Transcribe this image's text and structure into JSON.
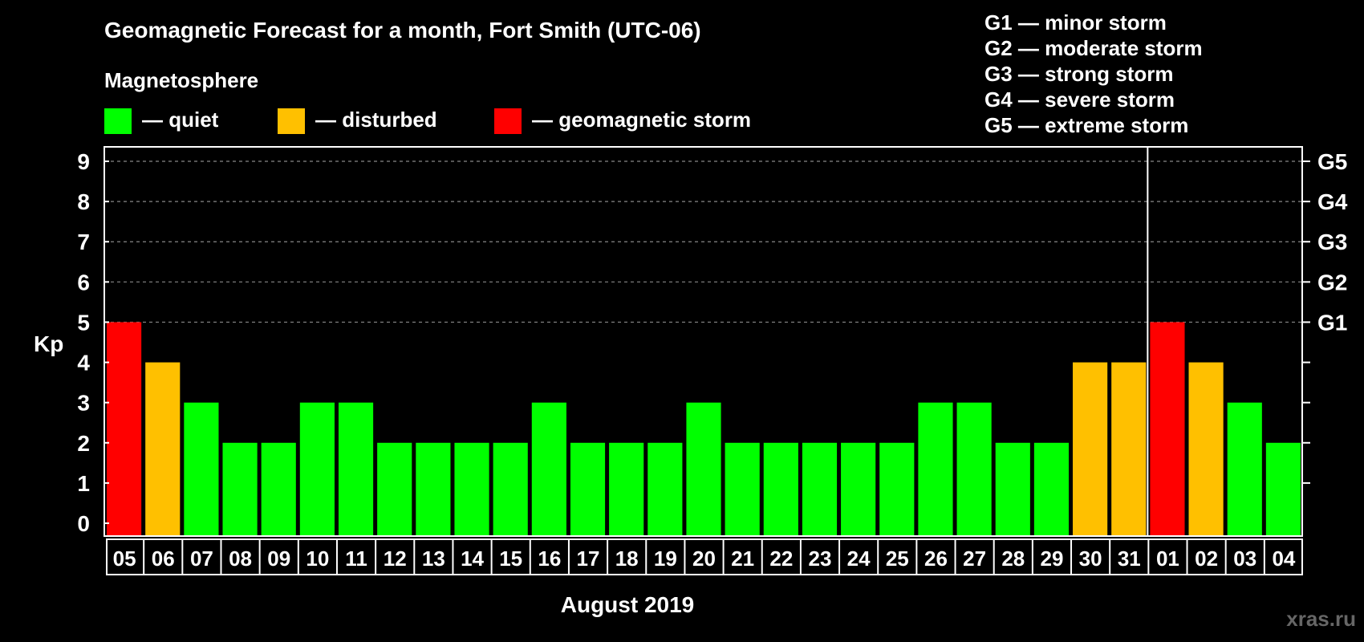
{
  "chart_data": {
    "type": "bar",
    "title": "Geomagnetic Forecast for a month, Fort Smith (UTC-06)",
    "xlabel": "August 2019",
    "ylabel": "Kp",
    "ylim": [
      0,
      9
    ],
    "yticks": [
      "0",
      "1",
      "2",
      "3",
      "4",
      "5",
      "6",
      "7",
      "8",
      "9"
    ],
    "grid": "dashed at 5-9",
    "legend_title": "Magnetosphere",
    "legend": [
      {
        "label": "— quiet",
        "color": "#00ff00"
      },
      {
        "label": "— disturbed",
        "color": "#ffc000"
      },
      {
        "label": "— geomagnetic storm",
        "color": "#ff0000"
      }
    ],
    "storm_scale": [
      "G1 — minor storm",
      "G2 — moderate storm",
      "G3 — strong storm",
      "G4 — severe storm",
      "G5 — extreme storm"
    ],
    "right_axis": [
      {
        "kp": 5,
        "label": "G1"
      },
      {
        "kp": 6,
        "label": "G2"
      },
      {
        "kp": 7,
        "label": "G3"
      },
      {
        "kp": 8,
        "label": "G4"
      },
      {
        "kp": 9,
        "label": "G5"
      }
    ],
    "categories": [
      "05",
      "06",
      "07",
      "08",
      "09",
      "10",
      "11",
      "12",
      "13",
      "14",
      "15",
      "16",
      "17",
      "18",
      "19",
      "20",
      "21",
      "22",
      "23",
      "24",
      "25",
      "26",
      "27",
      "28",
      "29",
      "30",
      "31",
      "01",
      "02",
      "03",
      "04"
    ],
    "values": [
      5,
      4,
      3,
      2,
      2,
      3,
      3,
      2,
      2,
      2,
      2,
      3,
      2,
      2,
      2,
      3,
      2,
      2,
      2,
      2,
      2,
      3,
      3,
      2,
      2,
      4,
      4,
      5,
      4,
      3,
      2
    ],
    "month_boundary_after": "31",
    "colors": {
      "quiet": "#00ff00",
      "disturbed": "#ffc000",
      "storm": "#ff0000",
      "background": "#000000",
      "axis": "#ffffff",
      "grid": "#888888"
    }
  },
  "watermark": "xras.ru"
}
